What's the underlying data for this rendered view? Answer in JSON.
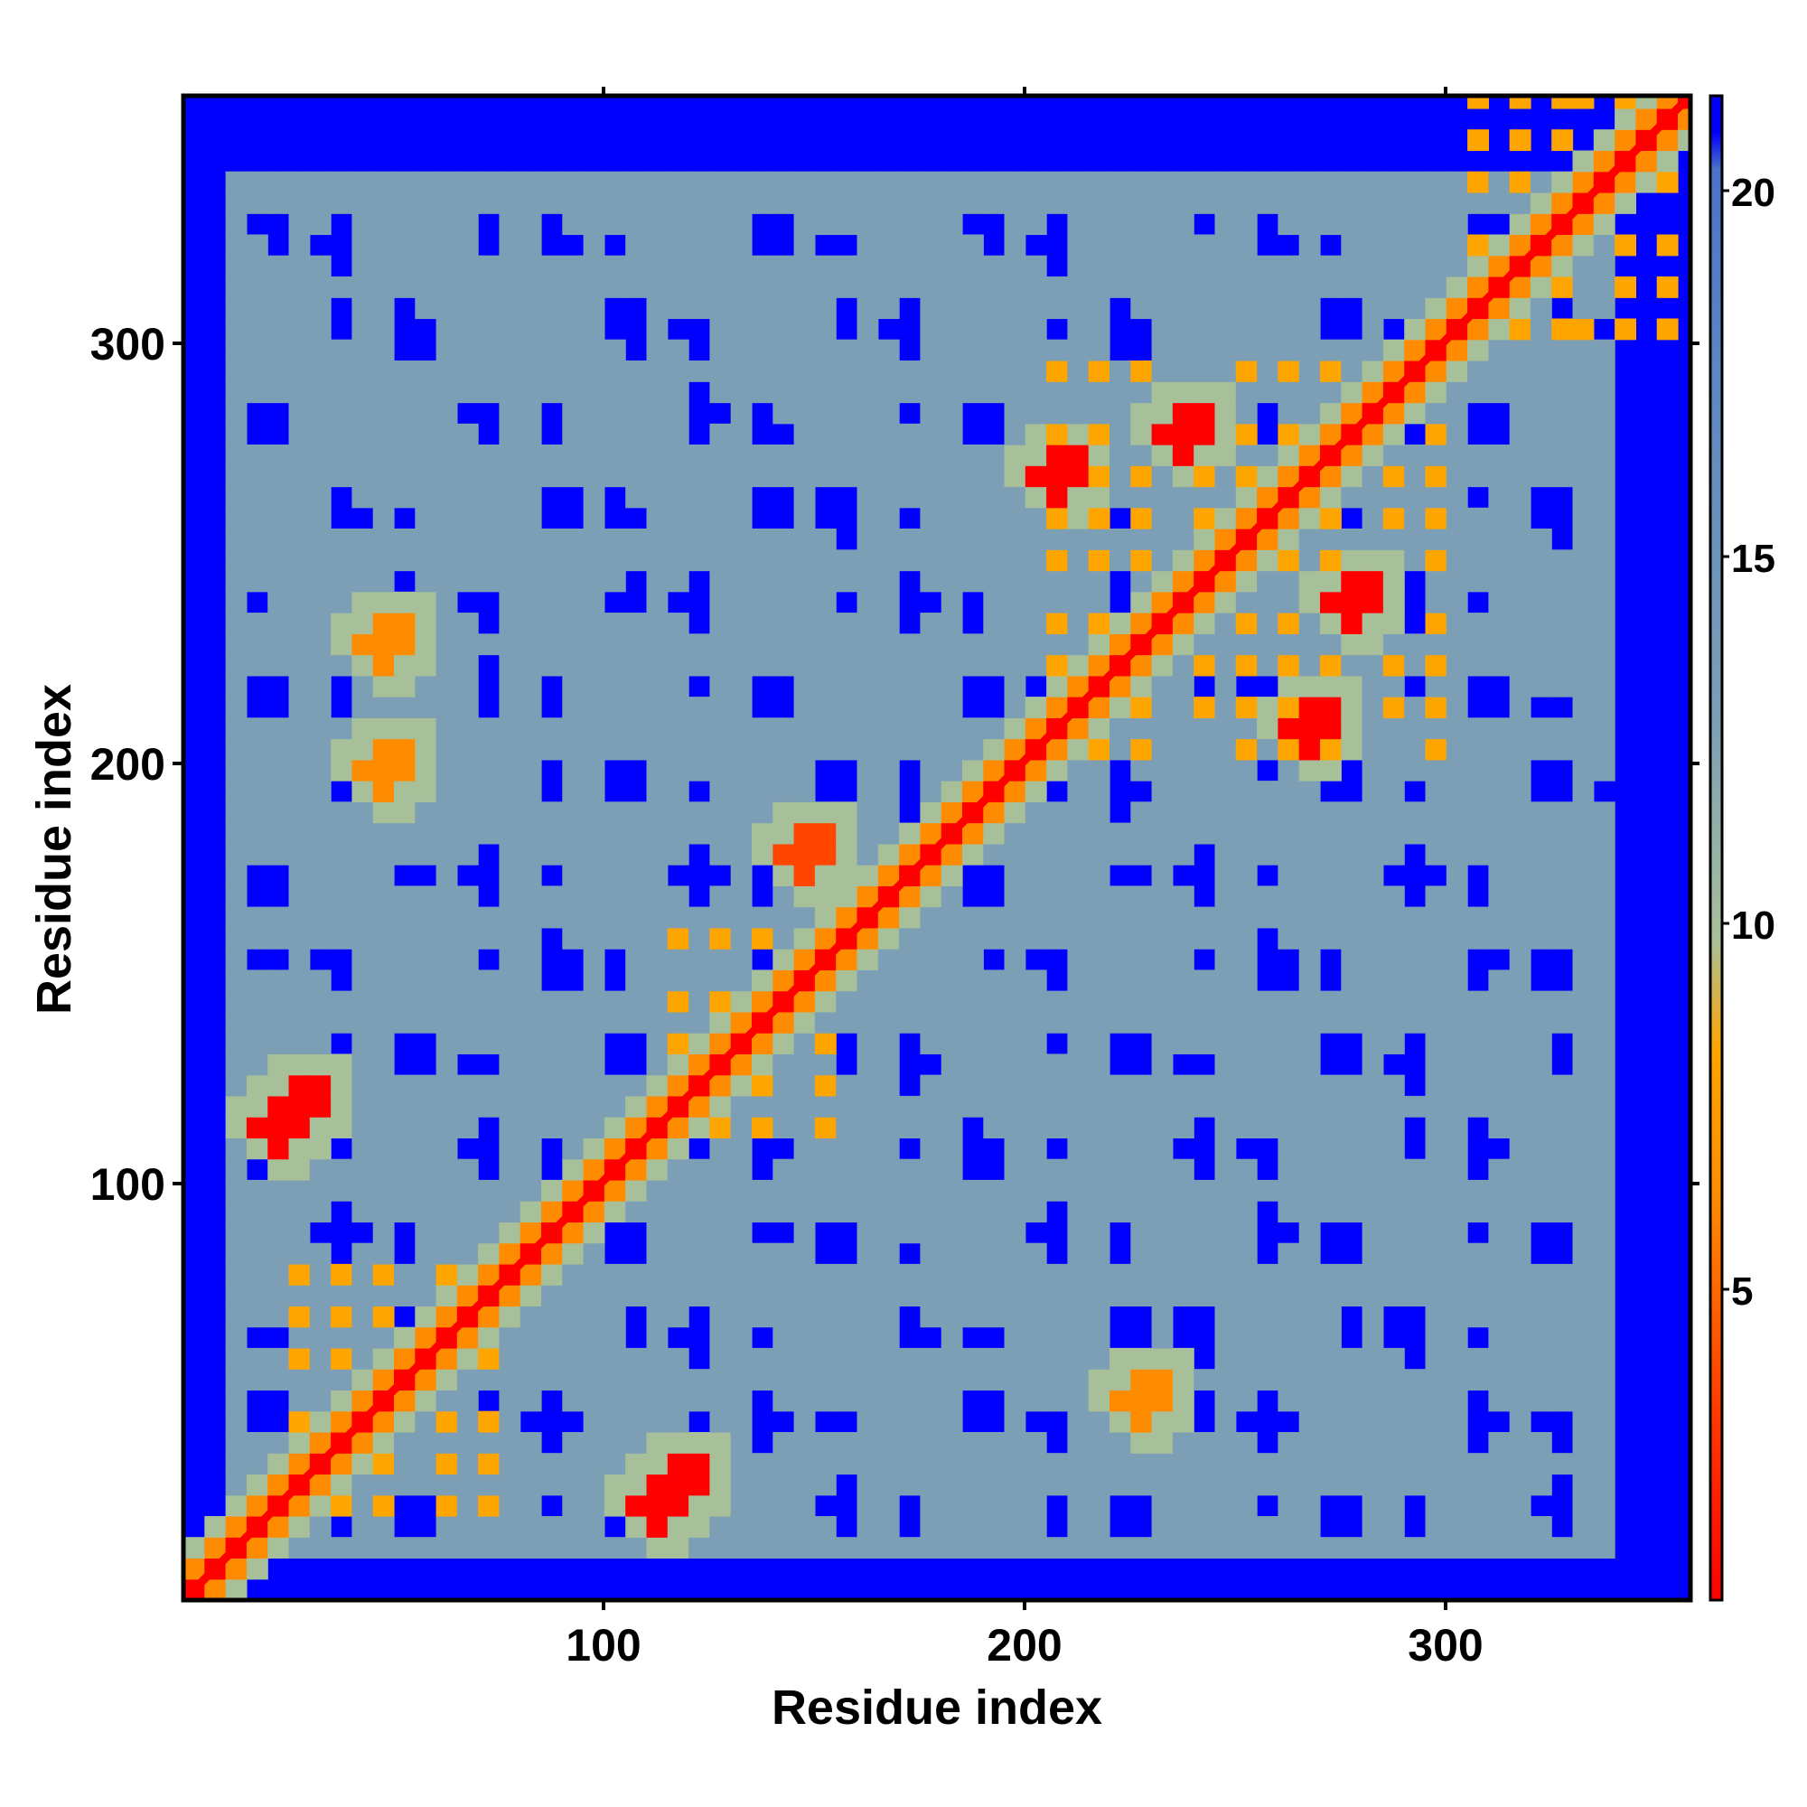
{
  "chart_data": {
    "type": "heatmap",
    "title": "",
    "xlabel": "Residue index",
    "ylabel": "Residue index",
    "xlim": [
      1,
      359
    ],
    "ylim": [
      1,
      359
    ],
    "x_ticks": [
      100,
      200,
      300
    ],
    "y_ticks": [
      100,
      200,
      300
    ],
    "grid": false,
    "colorbar": {
      "orientation": "vertical",
      "position": "right",
      "range": [
        1,
        21.5
      ],
      "ticks": [
        5,
        10,
        15,
        20
      ],
      "stops": [
        {
          "value": 1,
          "color": "#ff0000"
        },
        {
          "value": 4,
          "color": "#ff4500"
        },
        {
          "value": 6.5,
          "color": "#ff8c00"
        },
        {
          "value": 8.5,
          "color": "#ffa500"
        },
        {
          "value": 10,
          "color": "#a8c09a"
        },
        {
          "value": 13,
          "color": "#7c9fb6"
        },
        {
          "value": 18,
          "color": "#5a86c2"
        },
        {
          "value": 20.5,
          "color": "#4a72c8"
        },
        {
          "value": 21,
          "color": "#0000ff"
        }
      ]
    },
    "description_values": {
      "diagonal_value": 1,
      "background_value": 21,
      "contact_blocks": [
        {
          "x": [
            20,
            80
          ],
          "y": [
            20,
            80
          ],
          "pattern": "strong"
        },
        {
          "x": [
            110,
            160
          ],
          "y": [
            110,
            160
          ],
          "pattern": "strong"
        },
        {
          "x": [
            200,
            300
          ],
          "y": [
            200,
            300
          ],
          "pattern": "strong"
        },
        {
          "x": [
            300,
            359
          ],
          "y": [
            300,
            359
          ],
          "pattern": "diagonal-band"
        }
      ],
      "off_diagonal_contacts": [
        {
          "x": 30,
          "y": 120,
          "value": 4
        },
        {
          "x": 120,
          "y": 30,
          "value": 4
        },
        {
          "x": 115,
          "y": 25,
          "value": 4
        },
        {
          "x": 25,
          "y": 115,
          "value": 4
        },
        {
          "x": 230,
          "y": 50,
          "value": 8
        },
        {
          "x": 50,
          "y": 230,
          "value": 8
        },
        {
          "x": 280,
          "y": 240,
          "value": 4
        },
        {
          "x": 240,
          "y": 280,
          "value": 4
        },
        {
          "x": 210,
          "y": 270,
          "value": 4
        },
        {
          "x": 270,
          "y": 210,
          "value": 4
        },
        {
          "x": 50,
          "y": 200,
          "value": 8
        },
        {
          "x": 150,
          "y": 180,
          "value": 6
        }
      ]
    }
  },
  "labels": {
    "x_title": "Residue index",
    "y_title": "Residue index",
    "x_tick_100": "100",
    "x_tick_200": "200",
    "x_tick_300": "300",
    "y_tick_100": "100",
    "y_tick_200": "200",
    "y_tick_300": "300",
    "cb_tick_5": "5",
    "cb_tick_10": "10",
    "cb_tick_15": "15",
    "cb_tick_20": "20"
  }
}
